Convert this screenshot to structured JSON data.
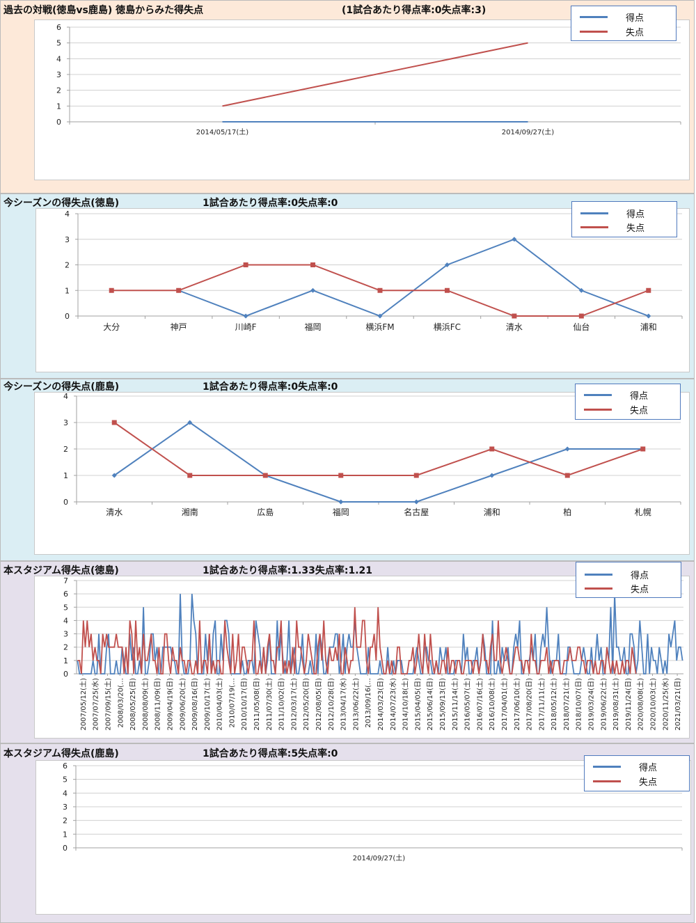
{
  "colors": {
    "goals": "#4f81bd",
    "conceded": "#c0504d",
    "grid": "#d0d0d0",
    "axis": "#a0a0a0"
  },
  "legend": {
    "goals": "得点",
    "conceded": "失点"
  },
  "sections": [
    {
      "title": "過去の対戦(徳島vs鹿島) 徳島からみた得失点",
      "subtitle": "(1試合あたり得点率:0失点率:3)",
      "background": "#fde9d9"
    },
    {
      "title": "今シーズンの得失点(徳島)",
      "subtitle": "1試合あたり得点率:0失点率:0",
      "background": "#dbeef4"
    },
    {
      "title": "今シーズンの得失点(鹿島)",
      "subtitle": "1試合あたり得点率:0失点率:0",
      "background": "#dbeef4"
    },
    {
      "title": "本スタジアム得失点(徳島)",
      "subtitle": "1試合あたり得点率:1.33失点率:1.21",
      "background": "#e5e0ec"
    },
    {
      "title": "本スタジアム得失点(鹿島)",
      "subtitle": "1試合あたり得点率:5失点率:0",
      "background": "#e5e0ec"
    }
  ],
  "chart_data": [
    {
      "type": "line",
      "title": "過去の対戦(徳島vs鹿島) 徳島からみた得失点",
      "categories": [
        "2014/05/17(土)",
        "2014/09/27(土)"
      ],
      "ylim": [
        0,
        6
      ],
      "yticks": [
        0,
        1,
        2,
        3,
        4,
        5,
        6
      ],
      "grid": true,
      "legend": "top-right",
      "markers": false,
      "series": [
        {
          "name": "得点",
          "values": [
            0,
            0
          ]
        },
        {
          "name": "失点",
          "values": [
            1,
            5
          ]
        }
      ]
    },
    {
      "type": "line",
      "title": "今シーズンの得失点(徳島)",
      "categories": [
        "大分",
        "神戸",
        "川崎F",
        "福岡",
        "横浜FM",
        "横浜FC",
        "清水",
        "仙台",
        "浦和"
      ],
      "ylim": [
        0,
        4
      ],
      "yticks": [
        0,
        1,
        2,
        3,
        4
      ],
      "grid": true,
      "legend": "top-right",
      "markers": true,
      "series": [
        {
          "name": "得点",
          "values": [
            null,
            1,
            0,
            1,
            0,
            2,
            3,
            1,
            0
          ]
        },
        {
          "name": "失点",
          "values": [
            1,
            1,
            2,
            2,
            1,
            1,
            0,
            0,
            1
          ]
        }
      ]
    },
    {
      "type": "line",
      "title": "今シーズンの得失点(鹿島)",
      "categories": [
        "清水",
        "湘南",
        "広島",
        "福岡",
        "名古屋",
        "浦和",
        "柏",
        "札幌"
      ],
      "ylim": [
        0,
        4
      ],
      "yticks": [
        0,
        1,
        2,
        3,
        4
      ],
      "grid": true,
      "legend": "top-right",
      "markers": true,
      "series": [
        {
          "name": "得点",
          "values": [
            1,
            3,
            1,
            0,
            0,
            1,
            2,
            2
          ]
        },
        {
          "name": "失点",
          "values": [
            3,
            1,
            1,
            1,
            1,
            2,
            1,
            2
          ]
        }
      ]
    },
    {
      "type": "line",
      "title": "本スタジアム得失点(徳島)",
      "tick_labels": [
        "2007/05/12(土)",
        "2007/07/25(水)",
        "2007/09/15(土)",
        "2008/03/20(…",
        "2008/05/25(日)",
        "2008/08/09(土)",
        "2008/11/09(日)",
        "2009/04/19(日)",
        "2009/06/20(土)",
        "2009/08/16(日)",
        "2009/10/17(土)",
        "2010/04/03(土)",
        "2010/07/19(…",
        "2010/10/17(日)",
        "2011/05/08(日)",
        "2011/07/30(土)",
        "2011/10/02(日)",
        "2012/03/17(土)",
        "2012/05/20(日)",
        "2012/08/05(日)",
        "2012/10/28(日)",
        "2013/04/17(水)",
        "2013/06/22(土)",
        "2013/09/16(…",
        "2014/03/23(日)",
        "2014/07/23(水)",
        "2014/10/18(土)",
        "2015/04/05(日)",
        "2015/06/14(日)",
        "2015/09/13(日)",
        "2015/11/14(土)",
        "2016/05/07(土)",
        "2016/07/16(土)",
        "2016/10/08(土)",
        "2017/04/01(土)",
        "2017/06/10(土)",
        "2017/08/20(日)",
        "2017/11/11(土)",
        "2018/05/12(土)",
        "2018/07/21(土)",
        "2018/10/07(日)",
        "2019/03/24(日)",
        "2019/06/22(土)",
        "2019/08/31(土)",
        "2019/11/24(日)",
        "2020/08/08(土)",
        "2020/10/03(土)",
        "2020/11/25(水)",
        "2021/03/21(日)"
      ],
      "ylim": [
        0,
        7
      ],
      "yticks": [
        0,
        1,
        2,
        3,
        4,
        5,
        6,
        7
      ],
      "grid": true,
      "legend": "top-right",
      "markers": false,
      "series": [
        {
          "name": "得点",
          "values": [
            1,
            0,
            0,
            0,
            0,
            0,
            0,
            0,
            1,
            0,
            0,
            3,
            0,
            0,
            0,
            2,
            3,
            0,
            0,
            0,
            1,
            0,
            0,
            2,
            1,
            0,
            0,
            3,
            1,
            2,
            0,
            0,
            1,
            0,
            5,
            0,
            0,
            1,
            3,
            3,
            1,
            2,
            0,
            0,
            2,
            2,
            2,
            2,
            2,
            1,
            1,
            0,
            0,
            6,
            1,
            0,
            0,
            0,
            1,
            6,
            4,
            3,
            0,
            0,
            0,
            0,
            3,
            1,
            3,
            0,
            3,
            4,
            0,
            0,
            3,
            1,
            4,
            4,
            3,
            0,
            0,
            0,
            0,
            0,
            0,
            1,
            0,
            0,
            1,
            1,
            1,
            0,
            4,
            3,
            2,
            0,
            2,
            0,
            1,
            3,
            0,
            0,
            0,
            4,
            1,
            3,
            1,
            0,
            1,
            4,
            0,
            1,
            2,
            0,
            0,
            1,
            3,
            0,
            0,
            0,
            1,
            0,
            0,
            3,
            0,
            3,
            2,
            0,
            0,
            1,
            2,
            2,
            2,
            3,
            3,
            0,
            1,
            3,
            0,
            2,
            3,
            2,
            2,
            4,
            2,
            1,
            0,
            0,
            0,
            0,
            2,
            0,
            0,
            0,
            0,
            0,
            1,
            0,
            0,
            0,
            2,
            0,
            0,
            1,
            0,
            1,
            1,
            1,
            0,
            0,
            0,
            0,
            0,
            0,
            1,
            2,
            1,
            0,
            0,
            2,
            2,
            1,
            1,
            0,
            0,
            1,
            0,
            2,
            1,
            1,
            2,
            0,
            0,
            0,
            0,
            1,
            1,
            1,
            0,
            3,
            1,
            2,
            0,
            0,
            1,
            1,
            2,
            0,
            1,
            3,
            2,
            0,
            0,
            0,
            4,
            0,
            0,
            1,
            0,
            2,
            1,
            1,
            2,
            0,
            0,
            2,
            3,
            2,
            4,
            0,
            0,
            1,
            1,
            1,
            2,
            1,
            3,
            0,
            0,
            2,
            3,
            2,
            5,
            2,
            0,
            1,
            1,
            1,
            3,
            0,
            0,
            0,
            0,
            2,
            2,
            1,
            0,
            0,
            0,
            0,
            1,
            2,
            1,
            0,
            0,
            2,
            0,
            1,
            3,
            1,
            2,
            0,
            0,
            2,
            1,
            5,
            0,
            6,
            2,
            2,
            1,
            1,
            2,
            0,
            0,
            3,
            3,
            2,
            0,
            1,
            4,
            2,
            0,
            0,
            3,
            0,
            2,
            1,
            1,
            0,
            2,
            1,
            0,
            1,
            0,
            3,
            2,
            3,
            4,
            1,
            2,
            2,
            1
          ]
        },
        {
          "name": "失点",
          "values": [
            1,
            1,
            0,
            4,
            2,
            4,
            2,
            3,
            1,
            2,
            1,
            1,
            0,
            3,
            2,
            3,
            2,
            2,
            2,
            2,
            3,
            2,
            2,
            2,
            0,
            2,
            0,
            4,
            3,
            0,
            4,
            1,
            2,
            0,
            3,
            1,
            1,
            2,
            3,
            1,
            1,
            0,
            2,
            0,
            0,
            3,
            3,
            1,
            0,
            2,
            1,
            1,
            0,
            2,
            1,
            1,
            0,
            1,
            1,
            0,
            0,
            1,
            0,
            4,
            0,
            1,
            1,
            0,
            3,
            0,
            1,
            0,
            1,
            1,
            0,
            0,
            4,
            2,
            1,
            0,
            3,
            0,
            1,
            3,
            0,
            2,
            2,
            1,
            0,
            1,
            1,
            4,
            0,
            0,
            1,
            0,
            2,
            0,
            2,
            3,
            1,
            1,
            0,
            2,
            2,
            4,
            0,
            1,
            0,
            1,
            0,
            2,
            0,
            4,
            2,
            2,
            1,
            0,
            1,
            3,
            2,
            1,
            0,
            0,
            2,
            3,
            1,
            4,
            1,
            0,
            2,
            1,
            1,
            2,
            1,
            3,
            0,
            0,
            2,
            1,
            0,
            1,
            1,
            5,
            2,
            2,
            2,
            4,
            4,
            1,
            0,
            2,
            2,
            3,
            1,
            5,
            2,
            1,
            0,
            0,
            1,
            0,
            1,
            0,
            0,
            2,
            2,
            0,
            0,
            0,
            0,
            1,
            1,
            2,
            0,
            1,
            3,
            1,
            0,
            3,
            1,
            0,
            3,
            1,
            0,
            1,
            0,
            0,
            1,
            1,
            0,
            2,
            0,
            1,
            1,
            0,
            1,
            1,
            0,
            0,
            1,
            1,
            1,
            1,
            0,
            1,
            1,
            0,
            1,
            3,
            1,
            1,
            0,
            2,
            3,
            1,
            1,
            4,
            1,
            0,
            1,
            2,
            1,
            0,
            0,
            1,
            2,
            2,
            1,
            1,
            0,
            1,
            1,
            0,
            3,
            1,
            1,
            0,
            0,
            1,
            1,
            1,
            2,
            0,
            1,
            0,
            1,
            1,
            1,
            0,
            0,
            1,
            1,
            1,
            2,
            1,
            1,
            1,
            2,
            2,
            1,
            1,
            0,
            1,
            1,
            1,
            0,
            1,
            0,
            0,
            1,
            1,
            0,
            2,
            1,
            0,
            1,
            0,
            1,
            0,
            0,
            1,
            0,
            1,
            1,
            0,
            2,
            1,
            0
          ]
        }
      ]
    },
    {
      "type": "line",
      "title": "本スタジアム得失点(鹿島)",
      "categories": [
        "2014/09/27(土)"
      ],
      "ylim": [
        0,
        6
      ],
      "yticks": [
        0,
        1,
        2,
        3,
        4,
        5,
        6
      ],
      "grid": true,
      "legend": "top-right",
      "markers": false,
      "series": [
        {
          "name": "得点",
          "values": []
        },
        {
          "name": "失点",
          "values": []
        }
      ]
    }
  ]
}
